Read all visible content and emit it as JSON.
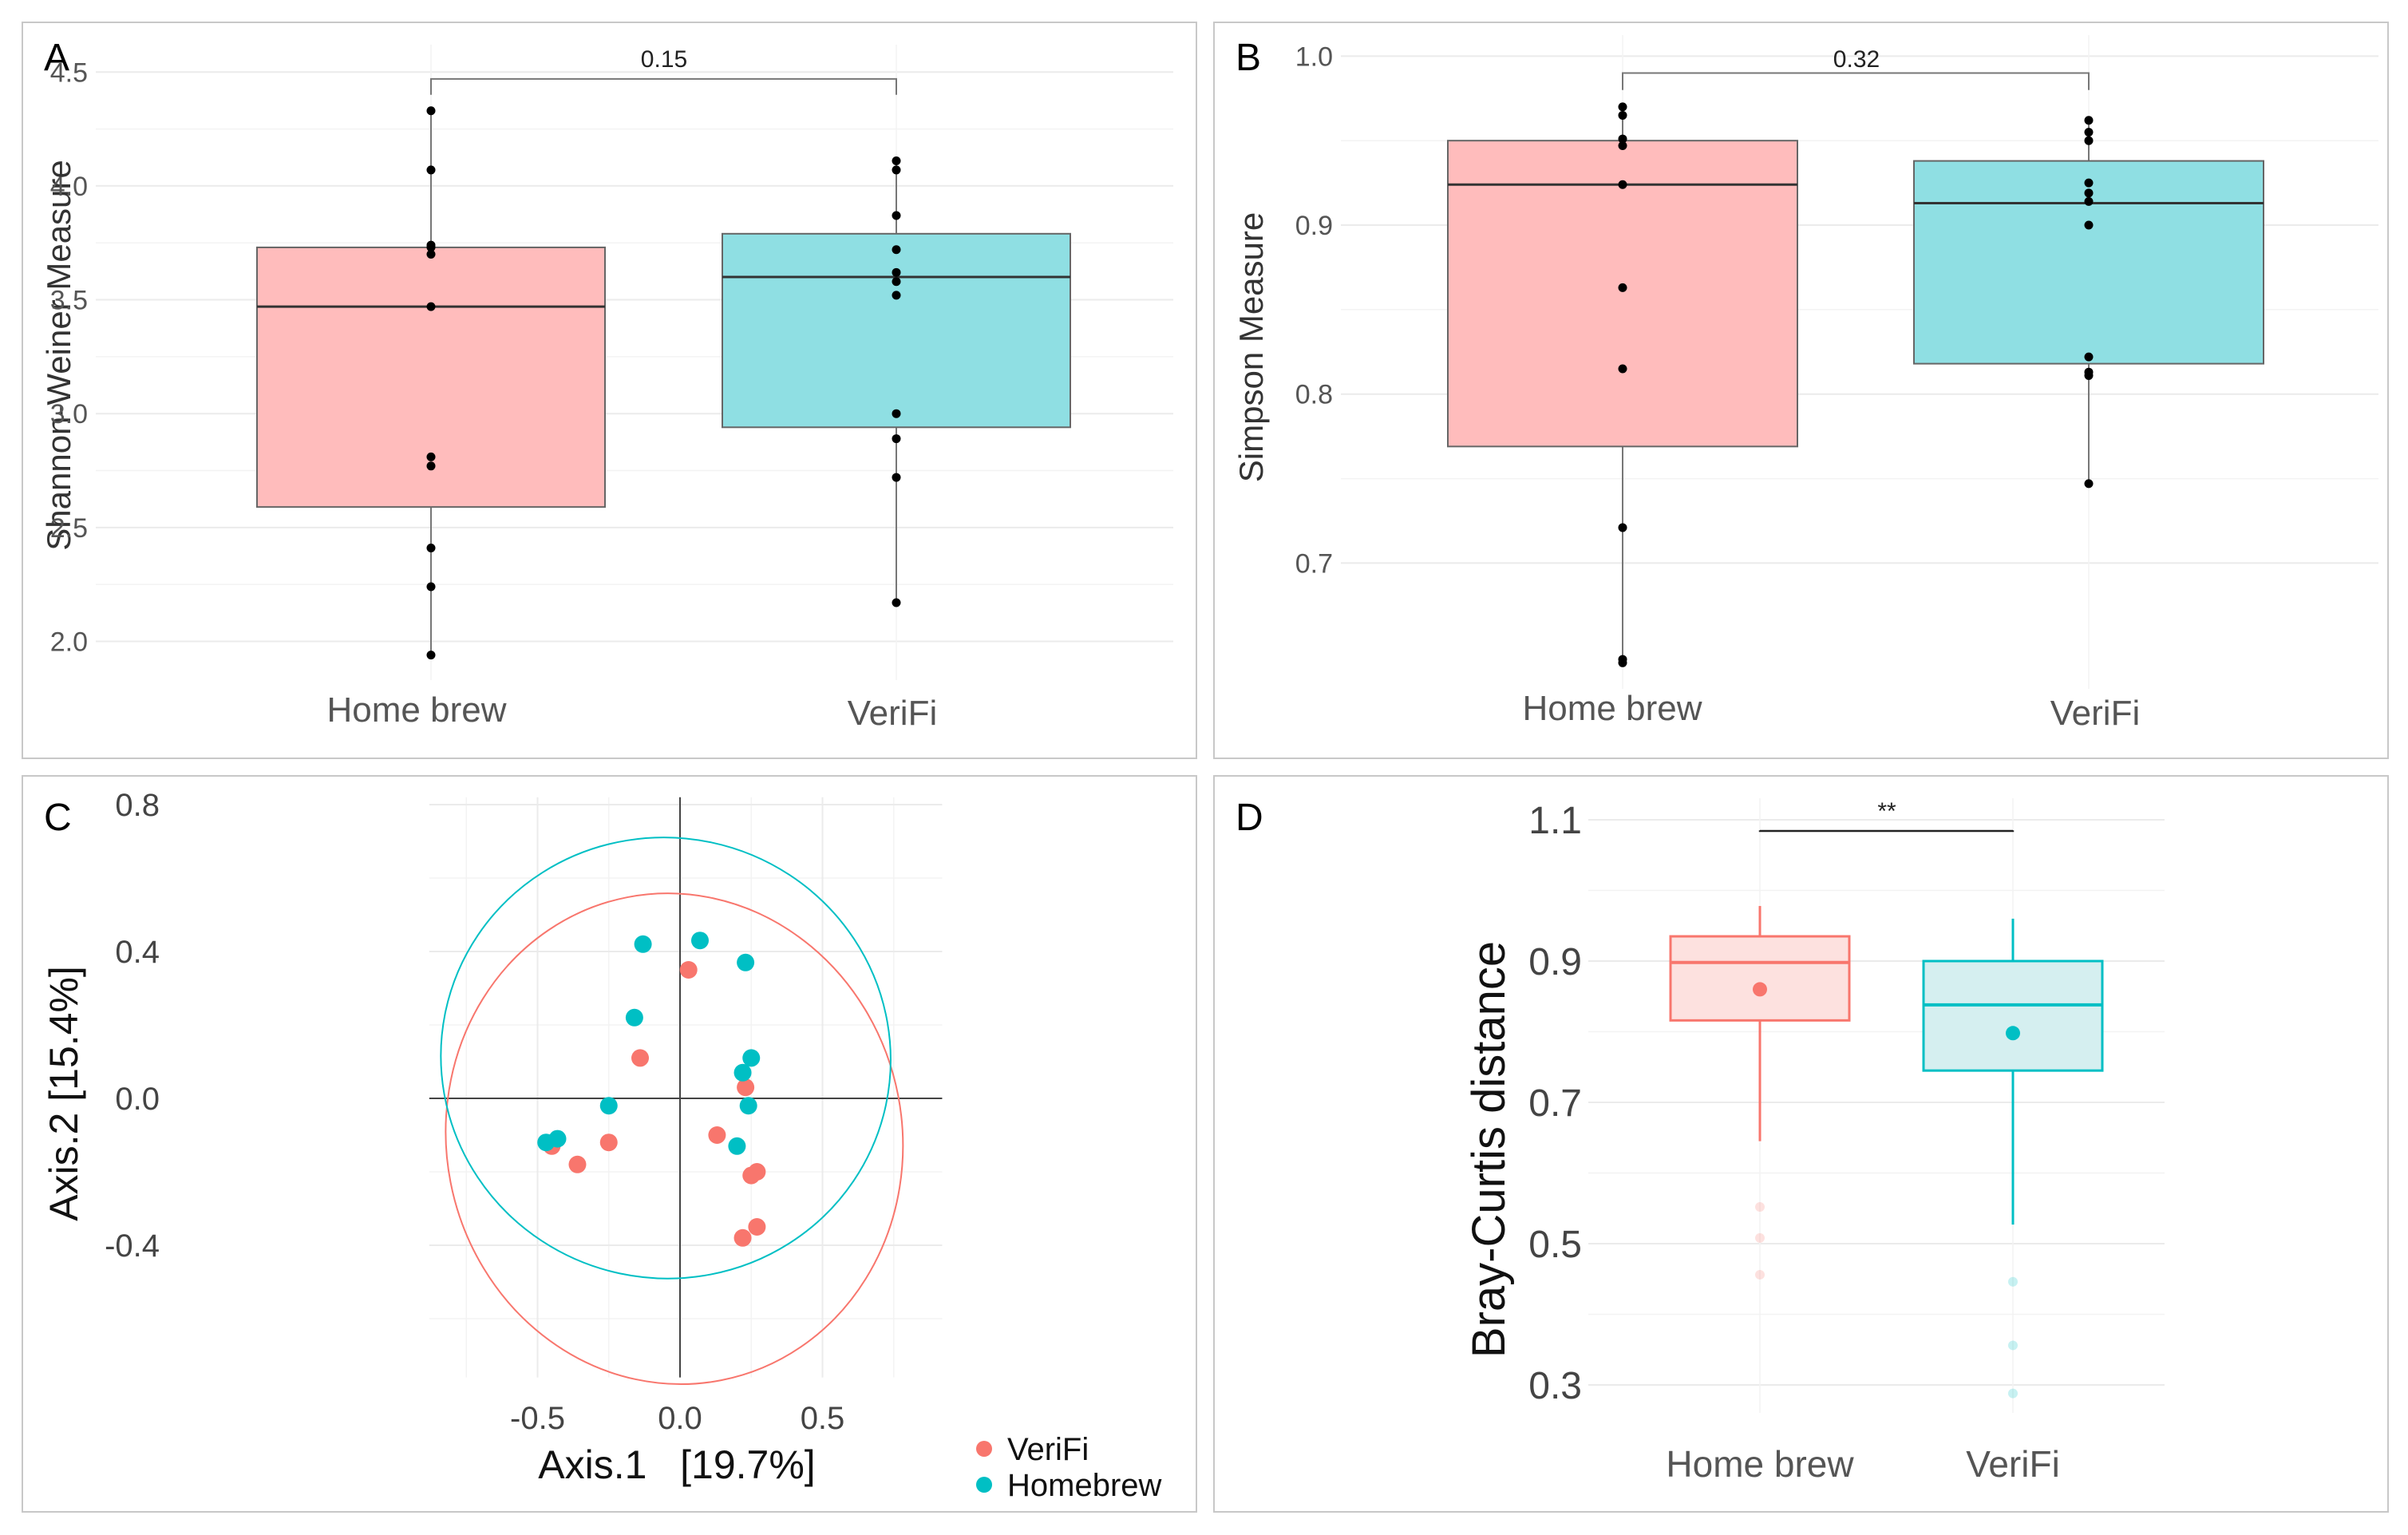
{
  "colors": {
    "home_fill": "#ffbcbc",
    "verifi_fill": "#8fdfe3",
    "home_line": "#f8766d",
    "verifi_line": "#00bfc4",
    "home_fill_light": "#fde1df",
    "verifi_fill_light": "#d5eff0",
    "grid": "#ebebeb",
    "panel_border": "#c8c8c8",
    "dot": "#000000",
    "text": "#333333"
  },
  "chart_data": [
    {
      "panel": "A",
      "type": "box",
      "ylabel": "Shannon-Weiner Measure",
      "ylim": [
        1.9,
        4.55
      ],
      "yticks": [
        "2.0",
        "2.5",
        "3.0",
        "3.5",
        "4.0",
        "4.5"
      ],
      "categories": [
        "Home brew",
        "VeriFi"
      ],
      "significance": {
        "label": "0.15",
        "y": 4.47,
        "drop": 4.4
      },
      "boxes": [
        {
          "name": "Home brew",
          "q1": 2.59,
          "median": 3.47,
          "q3": 3.73,
          "whisker_low": 1.94,
          "whisker_high": 4.33,
          "points": [
            4.33,
            4.07,
            3.74,
            3.73,
            3.7,
            3.47,
            2.81,
            2.77,
            2.41,
            2.24,
            1.94
          ]
        },
        {
          "name": "VeriFi",
          "q1": 2.94,
          "median": 3.6,
          "q3": 3.79,
          "whisker_low": 2.17,
          "whisker_high": 4.11,
          "points": [
            4.11,
            4.07,
            3.87,
            3.72,
            3.62,
            3.58,
            3.52,
            3.0,
            2.89,
            2.72,
            2.17
          ]
        }
      ]
    },
    {
      "panel": "B",
      "type": "box",
      "ylabel": "Simpson Measure",
      "ylim": [
        0.635,
        1.003
      ],
      "yticks": [
        "0.7",
        "0.8",
        "0.9",
        "1.0"
      ],
      "categories": [
        "Home brew",
        "VeriFi"
      ],
      "significance": {
        "label": "0.32",
        "y": 0.99,
        "drop": 0.98
      },
      "boxes": [
        {
          "name": "Home brew",
          "q1": 0.769,
          "median": 0.924,
          "q3": 0.95,
          "whisker_low": 0.641,
          "whisker_high": 0.97,
          "points": [
            0.97,
            0.965,
            0.951,
            0.947,
            0.924,
            0.863,
            0.815,
            0.721,
            0.643,
            0.641
          ]
        },
        {
          "name": "VeriFi",
          "q1": 0.818,
          "median": 0.913,
          "q3": 0.938,
          "whisker_low": 0.747,
          "whisker_high": 0.962,
          "points": [
            0.962,
            0.955,
            0.95,
            0.925,
            0.919,
            0.914,
            0.9,
            0.822,
            0.813,
            0.811,
            0.747
          ]
        }
      ]
    },
    {
      "panel": "C",
      "type": "scatter",
      "xlabel": "Axis.1   [19.7%]",
      "ylabel": "Axis.2   [15.4%]",
      "xlim": [
        -0.88,
        0.92
      ],
      "ylim": [
        -0.76,
        0.82
      ],
      "xticks": [
        {
          "v": -0.5,
          "label": "-0.5"
        },
        {
          "v": 0.0,
          "label": "0.0"
        },
        {
          "v": 0.5,
          "label": "0.5"
        }
      ],
      "yticks": [
        {
          "v": -0.4,
          "label": "-0.4"
        },
        {
          "v": 0.0,
          "label": "0.0"
        },
        {
          "v": 0.4,
          "label": "0.4"
        },
        {
          "v": 0.8,
          "label": "0.8"
        }
      ],
      "legend": {
        "position": "bottom-right",
        "entries": [
          "VeriFi",
          "Homebrew"
        ]
      },
      "series": [
        {
          "name": "VeriFi",
          "points": [
            [
              0.03,
              0.35
            ],
            [
              -0.14,
              0.11
            ],
            [
              0.13,
              -0.1
            ],
            [
              0.23,
              0.03
            ],
            [
              0.25,
              -0.21
            ],
            [
              0.27,
              -0.2
            ],
            [
              0.22,
              -0.38
            ],
            [
              0.27,
              -0.35
            ],
            [
              -0.45,
              -0.13
            ],
            [
              -0.36,
              -0.18
            ],
            [
              -0.25,
              -0.12
            ]
          ],
          "ellipse": {
            "cx": -0.02,
            "cy": -0.11,
            "rx": 0.8,
            "ry": 0.67,
            "angle_deg": -11
          }
        },
        {
          "name": "Homebrew",
          "points": [
            [
              -0.13,
              0.42
            ],
            [
              0.07,
              0.43
            ],
            [
              0.23,
              0.37
            ],
            [
              -0.16,
              0.22
            ],
            [
              0.22,
              0.07
            ],
            [
              0.25,
              0.11
            ],
            [
              -0.25,
              -0.02
            ],
            [
              0.24,
              -0.02
            ],
            [
              0.2,
              -0.13
            ],
            [
              -0.47,
              -0.12
            ],
            [
              -0.43,
              -0.11
            ]
          ],
          "ellipse": {
            "cx": -0.05,
            "cy": 0.11,
            "rx": 0.79,
            "ry": 0.6,
            "angle_deg": 12
          }
        }
      ]
    },
    {
      "panel": "D",
      "type": "box",
      "ylabel": "Bray-Curtis distance",
      "ylim": [
        0.27,
        1.11
      ],
      "yticks": [
        "0.3",
        "0.5",
        "0.7",
        "0.9",
        "1.1"
      ],
      "categories": [
        "Home brew",
        "VeriFi"
      ],
      "significance": {
        "label": "**",
        "y": 1.1,
        "drop": 1.085
      },
      "boxes": [
        {
          "name": "Home brew",
          "q1": 0.816,
          "median": 0.898,
          "q3": 0.935,
          "whisker_low": 0.645,
          "whisker_high": 0.978,
          "mean": 0.86,
          "outliers": [
            0.552,
            0.508,
            0.456
          ]
        },
        {
          "name": "VeriFi",
          "q1": 0.745,
          "median": 0.838,
          "q3": 0.9,
          "whisker_low": 0.527,
          "whisker_high": 0.96,
          "mean": 0.798,
          "outliers": [
            0.446,
            0.356,
            0.288
          ]
        }
      ]
    }
  ]
}
